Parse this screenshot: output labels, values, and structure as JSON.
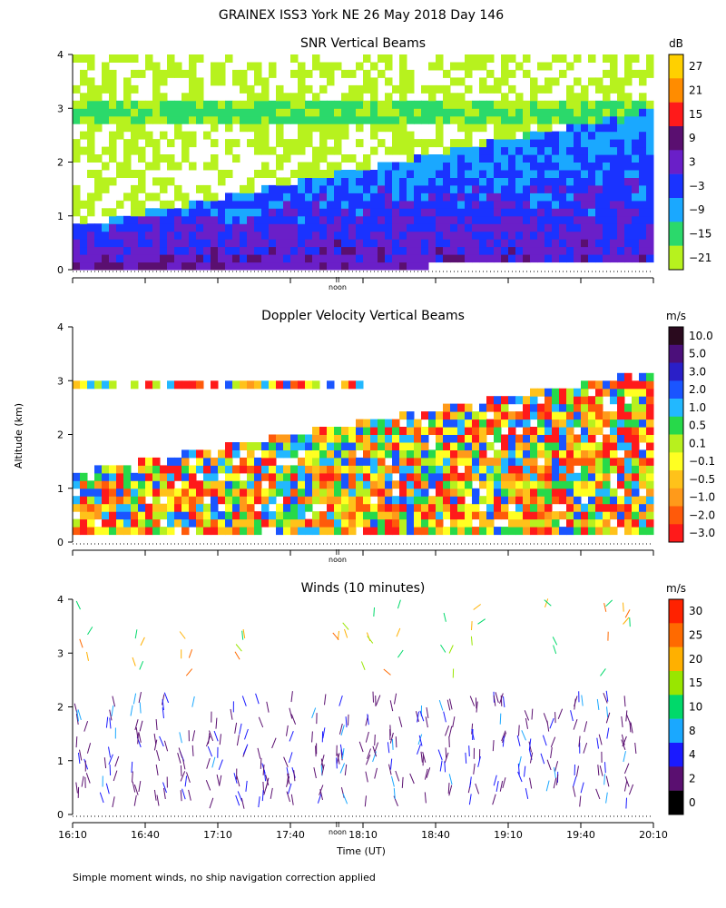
{
  "chart_data": {
    "title": "GRAINEX ISS3 York NE  26 May 2018 Day 146",
    "footnote": "Simple moment winds, no ship navigation correction applied",
    "shared_ylabel": "Altitude (km)",
    "noon_label": "noon",
    "noon_marker": "II",
    "panels": [
      {
        "type": "heatmap",
        "title": "SNR Vertical Beams",
        "ylim": [
          0,
          4
        ],
        "yticks": [
          "0",
          "1",
          "2",
          "3",
          "4"
        ],
        "colorbar": {
          "unit": "dB",
          "labels": [
            "27",
            "21",
            "15",
            "9",
            "3",
            "−3",
            "−9",
            "−15",
            "−21"
          ],
          "colors": [
            "#ffd000",
            "#ff8c00",
            "#ff1a1a",
            "#5a0f70",
            "#6a1fc8",
            "#1a33ff",
            "#1aa8ff",
            "#2bd96b",
            "#b7f21e"
          ]
        }
      },
      {
        "type": "heatmap",
        "title": "Doppler Velocity Vertical Beams",
        "ylim": [
          0,
          4
        ],
        "yticks": [
          "0",
          "1",
          "2",
          "3",
          "4"
        ],
        "colorbar": {
          "unit": "m/s",
          "labels": [
            "10.0",
            "5.0",
            "3.0",
            "2.0",
            "1.0",
            "0.5",
            "0.1",
            "−0.1",
            "−0.5",
            "−1.0",
            "−2.0",
            "−3.0"
          ],
          "colors": [
            "#2a0a1e",
            "#4b0f7a",
            "#2a1fc8",
            "#1a55ff",
            "#22b8ff",
            "#27d94a",
            "#b8f01e",
            "#ffff22",
            "#ffc21a",
            "#ff9a1a",
            "#ff5a0a",
            "#ff1a1a"
          ]
        }
      },
      {
        "type": "scatter",
        "title": "Winds (10 minutes)",
        "ylim": [
          0,
          4
        ],
        "yticks": [
          "0",
          "1",
          "2",
          "3",
          "4"
        ],
        "xticks": [
          "16:10",
          "16:40",
          "17:10",
          "17:40",
          "18:10",
          "18:40",
          "19:10",
          "19:40",
          "20:10"
        ],
        "xlabel": "Time (UT)",
        "colorbar": {
          "unit": "m/s",
          "labels": [
            "30",
            "25",
            "20",
            "15",
            "10",
            "8",
            "4",
            "2",
            "0"
          ],
          "colors": [
            "#ff2200",
            "#ff6a00",
            "#ffb000",
            "#99e600",
            "#00d96a",
            "#1aa8ff",
            "#1a1aff",
            "#5a0f70",
            "#000000"
          ]
        }
      }
    ]
  }
}
